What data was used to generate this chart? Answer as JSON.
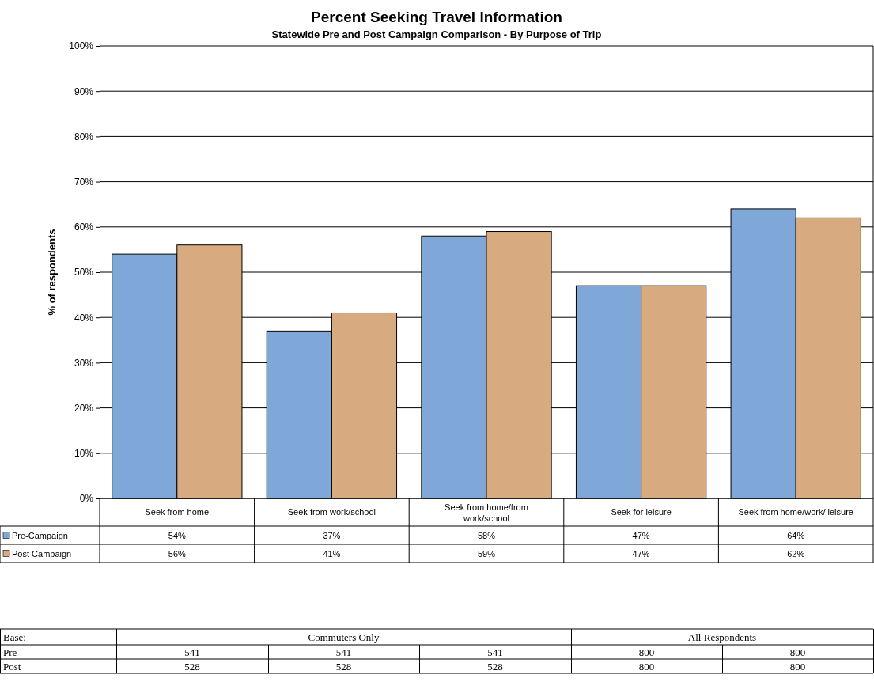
{
  "chart_data": {
    "type": "bar",
    "title": "Percent Seeking Travel Information",
    "subtitle": "Statewide Pre and Post Campaign Comparison - By Purpose of Trip",
    "ylabel": "% of respondents",
    "categories": [
      "Seek from home",
      "Seek from work/school",
      "Seek from home/from work/school",
      "Seek for leisure",
      "Seek from home/work/ leisure"
    ],
    "series": [
      {
        "name": "Pre-Campaign",
        "color": "#7fa8d8",
        "values": [
          54,
          37,
          58,
          47,
          64
        ],
        "value_labels": [
          "54%",
          "37%",
          "58%",
          "47%",
          "64%"
        ]
      },
      {
        "name": "Post Campaign",
        "color": "#d8aa80",
        "values": [
          56,
          41,
          59,
          47,
          62
        ],
        "value_labels": [
          "56%",
          "41%",
          "59%",
          "47%",
          "62%"
        ]
      }
    ],
    "ylim": [
      0,
      100
    ],
    "yticks": [
      {
        "value": 0,
        "label": "0%"
      },
      {
        "value": 10,
        "label": "10%"
      },
      {
        "value": 20,
        "label": "20%"
      },
      {
        "value": 30,
        "label": "30%"
      },
      {
        "value": 40,
        "label": "40%"
      },
      {
        "value": 50,
        "label": "50%"
      },
      {
        "value": 60,
        "label": "60%"
      },
      {
        "value": 70,
        "label": "70%"
      },
      {
        "value": 80,
        "label": "80%"
      },
      {
        "value": 90,
        "label": "90%"
      },
      {
        "value": 100,
        "label": "100%"
      }
    ],
    "grid": "y",
    "legend": "bottom left",
    "annotations": [
      "Base:",
      "Commuters Only",
      "All Respondents",
      "Pre",
      "541",
      "541",
      "541",
      "800",
      "800",
      "Post",
      "528",
      "528",
      "528",
      "800",
      "800"
    ]
  }
}
